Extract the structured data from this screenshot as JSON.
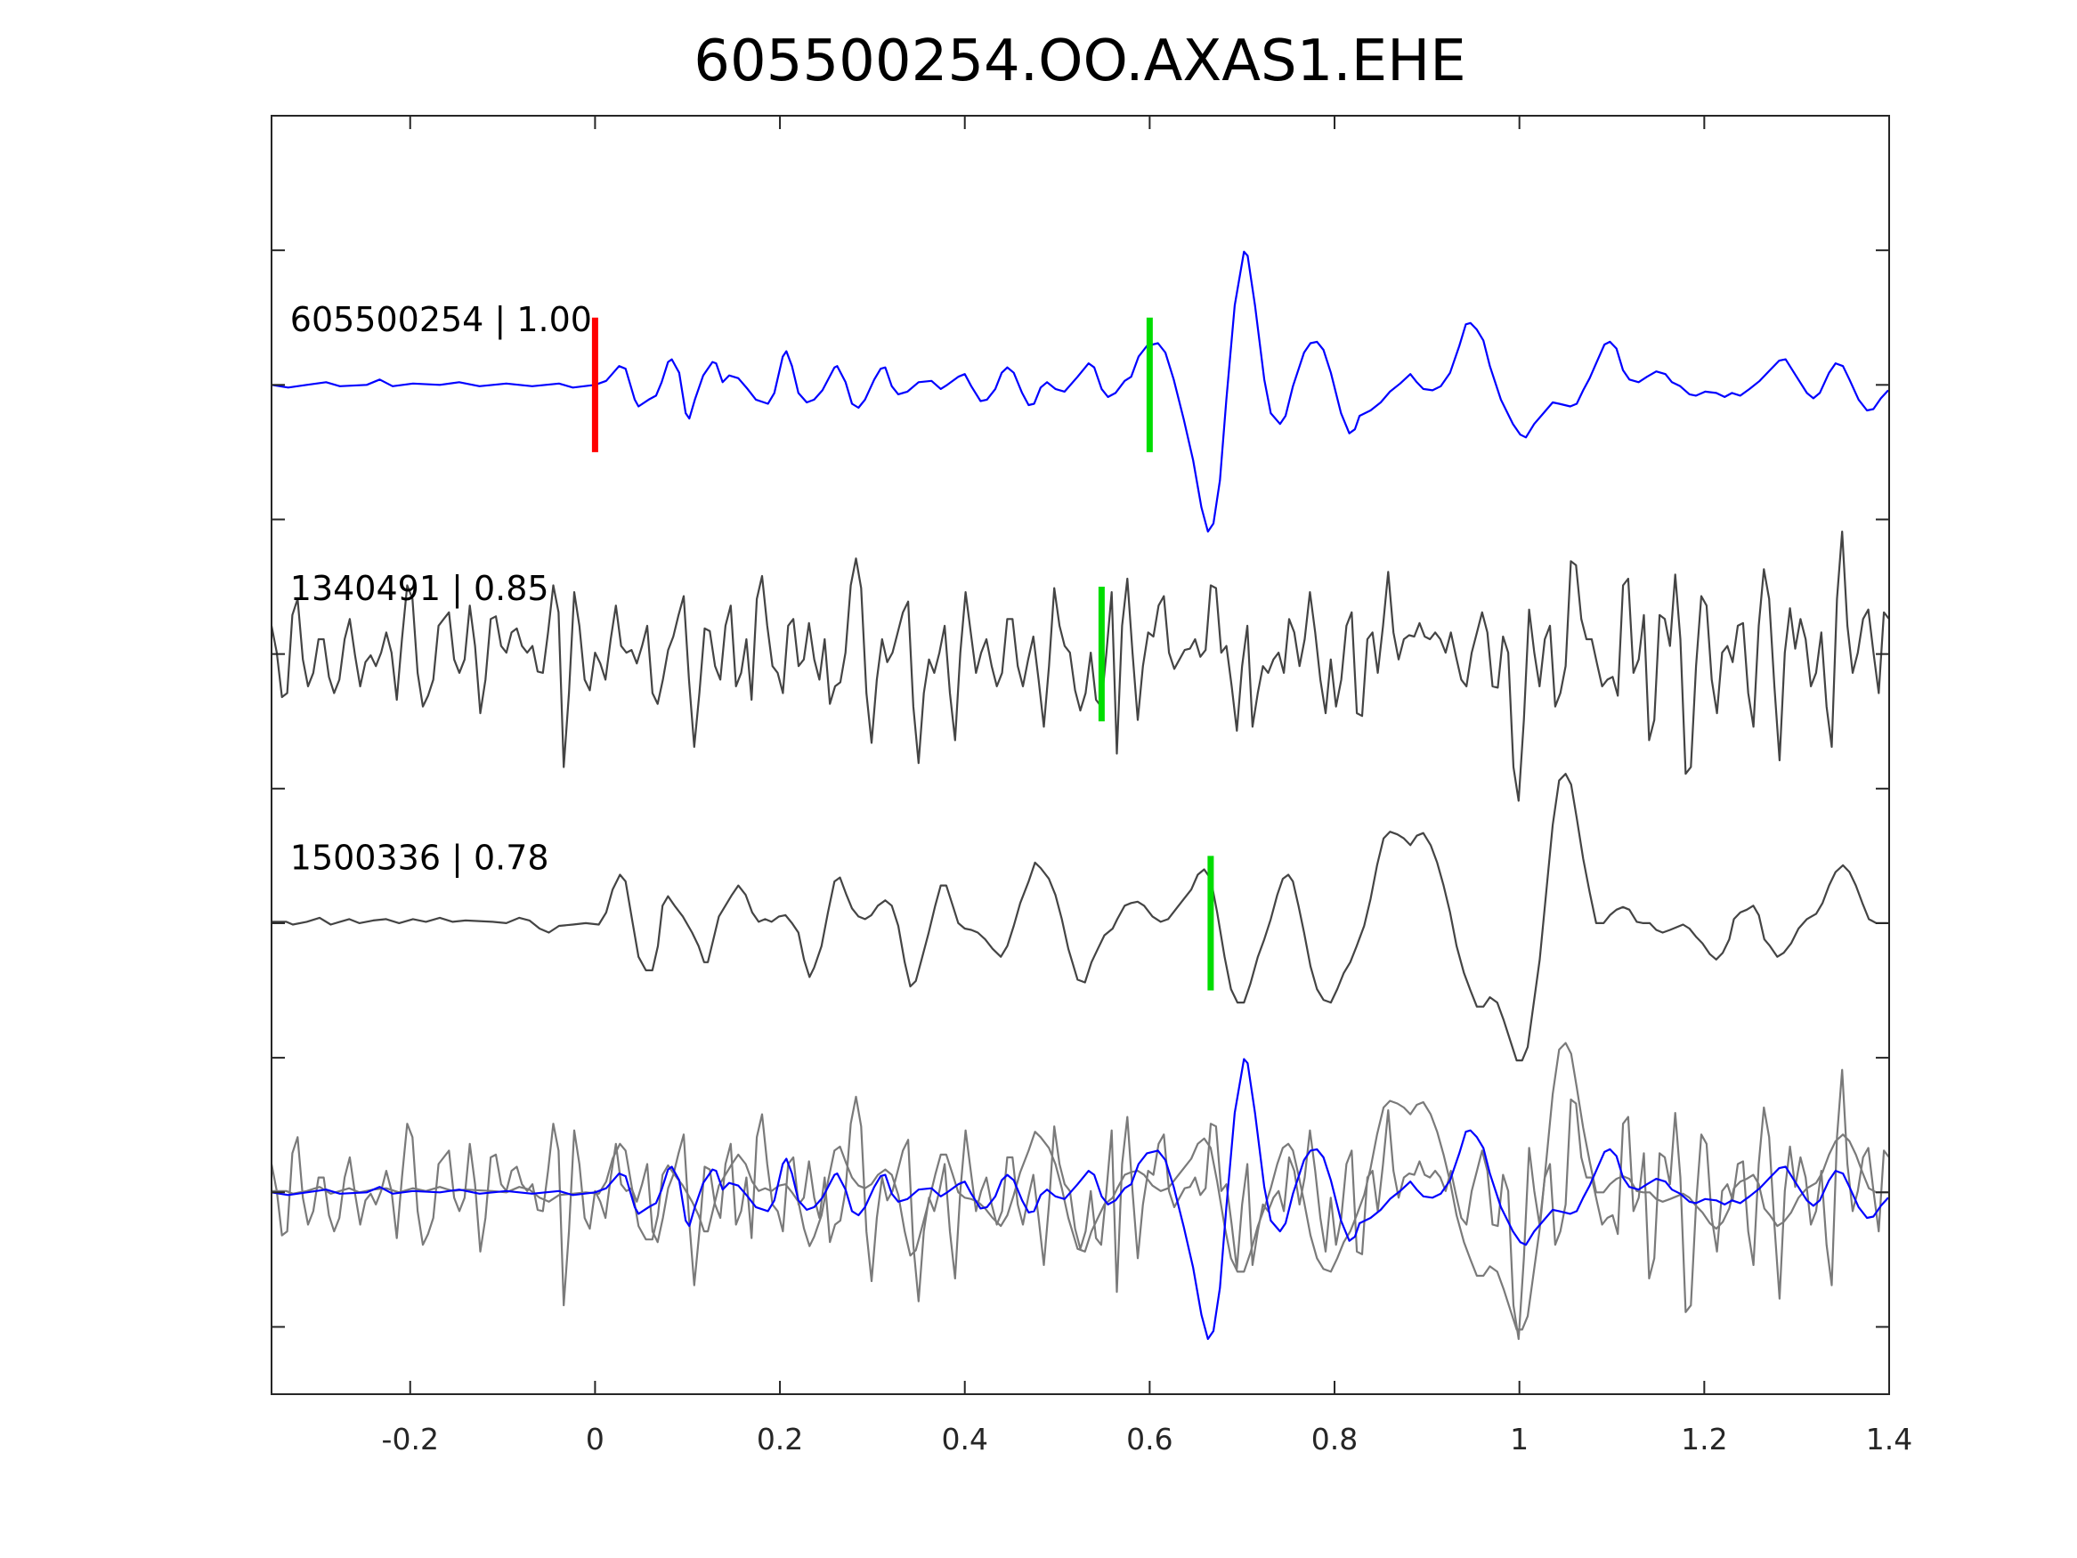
{
  "chart_data": {
    "type": "line",
    "title": "605500254.OO.AXAS1.EHE",
    "xlabel": "",
    "ylabel": "",
    "xlim": [
      -0.35,
      1.4
    ],
    "ylim": [
      -0.5,
      9
    ],
    "x_ticks": [
      -0.2,
      0,
      0.2,
      0.4,
      0.6,
      0.8,
      1,
      1.2,
      1.4
    ],
    "x_tick_labels": [
      "-0.2",
      "0",
      "0.2",
      "0.4",
      "0.6",
      "0.8",
      "1",
      "1.2",
      "1.4"
    ],
    "y_ticks": [
      0,
      1,
      2,
      3,
      4,
      5,
      6,
      7,
      8
    ],
    "grid": false,
    "amplitude_scale": 100,
    "overlay_offset": 1,
    "overlay_gray_color": "#7a7a7a",
    "reference_pick": {
      "time": 0,
      "color": "#ff0000"
    },
    "traces": [
      {
        "label": "605500254 | 1.00",
        "color": "#0000ff",
        "offset": 7,
        "pick_time": 0.6,
        "pick_color": "#00dd00",
        "t": [
          -0.35,
          -0.332,
          -0.312,
          -0.291,
          -0.276,
          -0.247,
          -0.233,
          -0.219,
          -0.197,
          -0.168,
          -0.147,
          -0.125,
          -0.096,
          -0.068,
          -0.039,
          -0.024,
          0,
          0.012,
          0.026,
          0.033,
          0.043,
          0.047,
          0.058,
          0.066,
          0.072,
          0.079,
          0.083,
          0.091,
          0.098,
          0.102,
          0.108,
          0.117,
          0.127,
          0.131,
          0.138,
          0.145,
          0.155,
          0.165,
          0.174,
          0.187,
          0.194,
          0.203,
          0.207,
          0.213,
          0.22,
          0.229,
          0.237,
          0.246,
          0.259,
          0.262,
          0.271,
          0.278,
          0.285,
          0.292,
          0.302,
          0.309,
          0.314,
          0.321,
          0.328,
          0.338,
          0.35,
          0.364,
          0.374,
          0.381,
          0.393,
          0.4,
          0.407,
          0.417,
          0.424,
          0.433,
          0.44,
          0.446,
          0.453,
          0.462,
          0.469,
          0.475,
          0.482,
          0.489,
          0.498,
          0.508,
          0.522,
          0.534,
          0.54,
          0.548,
          0.555,
          0.563,
          0.573,
          0.58,
          0.588,
          0.597,
          0.609,
          0.617,
          0.626,
          0.637,
          0.647,
          0.656,
          0.663,
          0.669,
          0.676,
          0.683,
          0.692,
          0.702,
          0.706,
          0.714,
          0.724,
          0.731,
          0.741,
          0.747,
          0.755,
          0.767,
          0.774,
          0.781,
          0.788,
          0.796,
          0.807,
          0.816,
          0.822,
          0.827,
          0.839,
          0.85,
          0.86,
          0.871,
          0.882,
          0.889,
          0.896,
          0.906,
          0.915,
          0.925,
          0.935,
          0.942,
          0.947,
          0.954,
          0.961,
          0.968,
          0.98,
          0.993,
          1.001,
          1.007,
          1.016,
          1.026,
          1.036,
          1.043,
          1.055,
          1.062,
          1.069,
          1.076,
          1.083,
          1.092,
          1.098,
          1.105,
          1.112,
          1.119,
          1.129,
          1.138,
          1.148,
          1.158,
          1.165,
          1.174,
          1.184,
          1.191,
          1.201,
          1.213,
          1.222,
          1.23,
          1.239,
          1.249,
          1.26,
          1.271,
          1.281,
          1.288,
          1.299,
          1.311,
          1.318,
          1.325,
          1.335,
          1.342,
          1.35,
          1.357,
          1.367,
          1.376,
          1.383,
          1.391,
          1.399
        ],
        "amp": [
          0,
          -2,
          0,
          2,
          -1,
          0,
          4,
          -1,
          1,
          0,
          2,
          -1,
          1,
          -1,
          1,
          -2,
          0,
          3,
          14,
          12,
          -11,
          -16,
          -11,
          -8,
          2,
          17,
          19,
          9,
          -21,
          -25,
          -11,
          7,
          17,
          16,
          2,
          7,
          5,
          -3,
          -11,
          -14,
          -6,
          21,
          25,
          14,
          -6,
          -13,
          -11,
          -4,
          13,
          14,
          2,
          -14,
          -17,
          -11,
          4,
          12,
          13,
          -1,
          -7,
          -5,
          2,
          3,
          -3,
          0,
          6,
          8,
          -1,
          -12,
          -11,
          -3,
          9,
          13,
          9,
          -6,
          -15,
          -14,
          -2,
          2,
          -3,
          -5,
          6,
          16,
          13,
          -3,
          -9,
          -6,
          3,
          6,
          21,
          29,
          31,
          24,
          4,
          -26,
          -56,
          -91,
          -109,
          -103,
          -71,
          -11,
          59,
          99,
          96,
          59,
          4,
          -21,
          -29,
          -23,
          -1,
          24,
          31,
          32,
          26,
          9,
          -21,
          -36,
          -33,
          -23,
          -19,
          -13,
          -5,
          1,
          8,
          2,
          -3,
          -4,
          -1,
          9,
          29,
          45,
          46,
          41,
          33,
          14,
          -11,
          -29,
          -37,
          -39,
          -29,
          -21,
          -13,
          -14,
          -16,
          -14,
          -4,
          5,
          16,
          30,
          32,
          27,
          11,
          4,
          2,
          6,
          10,
          8,
          2,
          -1,
          -7,
          -8,
          -5,
          -6,
          -9,
          -6,
          -8,
          -3,
          3,
          11,
          18,
          19,
          7,
          -6,
          -10,
          -6,
          9,
          16,
          14,
          4,
          -11,
          -19,
          -18,
          -10,
          -4
        ]
      },
      {
        "label": "1340491 | 0.85",
        "color": "#444444",
        "offset": 5,
        "pick_time": 0.548,
        "pick_color": "#00dd00",
        "t_range": [
          -0.35,
          1.4
        ],
        "amp": [
          21,
          1,
          -32,
          -29,
          29,
          41,
          -4,
          -24,
          -14,
          11,
          11,
          -17,
          -29,
          -19,
          11,
          26,
          -1,
          -24,
          -6,
          -1,
          -9,
          1,
          16,
          1,
          -34,
          11,
          51,
          41,
          -14,
          -39,
          -31,
          -19,
          21,
          26,
          31,
          -4,
          -14,
          -4,
          36,
          6,
          -44,
          -19,
          26,
          28,
          6,
          1,
          16,
          19,
          6,
          1,
          6,
          -13,
          -14,
          16,
          51,
          31,
          -84,
          -29,
          46,
          21,
          -19,
          -27,
          1,
          -7,
          -19,
          11,
          36,
          6,
          1,
          3,
          -7,
          6,
          21,
          -29,
          -37,
          -19,
          3,
          13,
          29,
          43,
          -19,
          -69,
          -29,
          19,
          17,
          -9,
          -19,
          21,
          36,
          -24,
          -14,
          11,
          -34,
          41,
          58,
          21,
          -9,
          -14,
          -29,
          21,
          26,
          -9,
          -4,
          23,
          -4,
          -19,
          11,
          -37,
          -24,
          -21,
          1,
          51,
          71,
          49,
          -29,
          -66,
          -19,
          11,
          -6,
          1,
          16,
          31,
          39,
          -39,
          -81,
          -29,
          -4,
          -14,
          1,
          21,
          -29,
          -64,
          1,
          46,
          16,
          -14,
          1,
          11,
          -9,
          -24,
          -14,
          26,
          26,
          -9,
          -24,
          -4,
          13,
          -19,
          -54,
          -9,
          49,
          21,
          6,
          1,
          -27,
          -42,
          -29,
          1,
          -34,
          -39,
          1,
          46,
          -74,
          21,
          56,
          1,
          -49,
          -9,
          16,
          13,
          36,
          43,
          1,
          -11,
          -4,
          3,
          4,
          11,
          -2,
          3,
          51,
          49,
          1,
          6,
          -24,
          -57,
          -9,
          21,
          -54,
          -29,
          -9,
          -14,
          -4,
          1,
          -14,
          26,
          16,
          -9,
          11,
          46,
          16,
          -19,
          -44,
          -4,
          -39,
          -19,
          21,
          31,
          -44,
          -46,
          11,
          16,
          -14,
          21,
          61,
          16,
          -4,
          11,
          14,
          13,
          23,
          13,
          11,
          16,
          11,
          1,
          16,
          -2,
          -19,
          -24,
          1,
          16,
          31,
          16,
          -24,
          -25,
          13,
          1,
          -84,
          -109,
          -49,
          33,
          1,
          -24,
          11,
          21,
          -39,
          -29,
          -9,
          69,
          66,
          26,
          11,
          11,
          -7,
          -24,
          -19,
          -17,
          -31,
          51,
          56,
          -14,
          -4,
          29,
          -64,
          -49,
          29,
          26,
          6,
          59,
          11,
          -89,
          -84,
          -9,
          43,
          36,
          -19,
          -44,
          1,
          6,
          -6,
          21,
          23,
          -29,
          -54,
          21,
          63,
          41,
          -24,
          -79,
          1,
          34,
          4,
          26,
          11,
          -24,
          -14,
          16,
          -39,
          -69,
          41,
          91,
          21,
          -14,
          1,
          26,
          33,
          1,
          -29,
          31,
          26
        ]
      },
      {
        "label": "1500336 | 0.78",
        "color": "#444444",
        "offset": 3,
        "pick_time": 0.666,
        "pick_color": "#00dd00",
        "t": [
          -0.35,
          -0.334,
          -0.327,
          -0.312,
          -0.298,
          -0.286,
          -0.276,
          -0.266,
          -0.255,
          -0.24,
          -0.226,
          -0.212,
          -0.197,
          -0.183,
          -0.168,
          -0.154,
          -0.14,
          -0.111,
          -0.096,
          -0.082,
          -0.071,
          -0.06,
          -0.05,
          -0.039,
          -0.024,
          -0.01,
          0.004,
          0.012,
          0.019,
          0.027,
          0.033,
          0.04,
          0.047,
          0.055,
          0.062,
          0.068,
          0.073,
          0.079,
          0.086,
          0.095,
          0.105,
          0.112,
          0.118,
          0.122,
          0.128,
          0.134,
          0.141,
          0.148,
          0.155,
          0.163,
          0.17,
          0.177,
          0.184,
          0.191,
          0.199,
          0.206,
          0.213,
          0.22,
          0.226,
          0.232,
          0.237,
          0.245,
          0.252,
          0.259,
          0.265,
          0.272,
          0.278,
          0.285,
          0.292,
          0.299,
          0.306,
          0.314,
          0.321,
          0.328,
          0.335,
          0.341,
          0.347,
          0.354,
          0.361,
          0.368,
          0.374,
          0.38,
          0.387,
          0.393,
          0.4,
          0.407,
          0.414,
          0.422,
          0.43,
          0.439,
          0.446,
          0.453,
          0.46,
          0.469,
          0.476,
          0.482,
          0.491,
          0.498,
          0.505,
          0.512,
          0.522,
          0.53,
          0.537,
          0.544,
          0.551,
          0.56,
          0.565,
          0.573,
          0.58,
          0.587,
          0.594,
          0.603,
          0.612,
          0.62,
          0.629,
          0.637,
          0.645,
          0.652,
          0.659,
          0.666,
          0.673,
          0.681,
          0.688,
          0.695,
          0.702,
          0.709,
          0.717,
          0.724,
          0.731,
          0.738,
          0.744,
          0.75,
          0.755,
          0.761,
          0.767,
          0.774,
          0.781,
          0.788,
          0.796,
          0.803,
          0.81,
          0.817,
          0.824,
          0.832,
          0.839,
          0.846,
          0.853,
          0.86,
          0.868,
          0.875,
          0.882,
          0.889,
          0.896,
          0.904,
          0.911,
          0.918,
          0.925,
          0.932,
          0.94,
          0.947,
          0.954,
          0.961,
          0.968,
          0.976,
          0.983,
          0.99,
          0.997,
          1.003,
          1.009,
          1.014,
          1.022,
          1.029,
          1.036,
          1.043,
          1.05,
          1.056,
          1.062,
          1.069,
          1.076,
          1.083,
          1.091,
          1.098,
          1.105,
          1.112,
          1.119,
          1.127,
          1.134,
          1.141,
          1.148,
          1.155,
          1.163,
          1.17,
          1.177,
          1.184,
          1.191,
          1.198,
          1.206,
          1.213,
          1.22,
          1.227,
          1.232,
          1.239,
          1.246,
          1.253,
          1.259,
          1.265,
          1.271,
          1.279,
          1.286,
          1.294,
          1.302,
          1.311,
          1.321,
          1.328,
          1.335,
          1.342,
          1.35,
          1.357,
          1.364,
          1.371,
          1.378,
          1.386,
          1.399
        ],
        "amp": [
          1,
          1,
          -1,
          1,
          4,
          -1,
          1,
          3,
          0,
          2,
          3,
          0,
          3,
          1,
          4,
          1,
          2,
          1,
          0,
          4,
          2,
          -4,
          -7,
          -2,
          -1,
          0,
          -1,
          8,
          25,
          36,
          31,
          3,
          -25,
          -35,
          -35,
          -17,
          13,
          20,
          13,
          5,
          -7,
          -17,
          -29,
          -29,
          -12,
          5,
          13,
          21,
          28,
          21,
          8,
          1,
          3,
          1,
          5,
          6,
          0,
          -7,
          -27,
          -40,
          -33,
          -17,
          8,
          31,
          34,
          21,
          11,
          5,
          3,
          6,
          13,
          17,
          13,
          -2,
          -29,
          -47,
          -43,
          -25,
          -7,
          13,
          28,
          28,
          13,
          0,
          -4,
          -5,
          -7,
          -12,
          -19,
          -25,
          -17,
          -2,
          15,
          31,
          45,
          41,
          33,
          21,
          3,
          -19,
          -42,
          -44,
          -29,
          -19,
          -9,
          -4,
          3,
          13,
          15,
          16,
          13,
          5,
          1,
          3,
          11,
          18,
          25,
          36,
          40,
          33,
          8,
          -25,
          -49,
          -59,
          -59,
          -45,
          -25,
          -12,
          3,
          21,
          33,
          36,
          31,
          13,
          -7,
          -32,
          -49,
          -57,
          -59,
          -49,
          -37,
          -29,
          -17,
          -2,
          18,
          43,
          63,
          68,
          66,
          63,
          58,
          65,
          67,
          58,
          45,
          28,
          8,
          -17,
          -37,
          -50,
          -62,
          -62,
          -55,
          -59,
          -72,
          -87,
          -102,
          -102,
          -92,
          -67,
          -27,
          23,
          73,
          106,
          111,
          103,
          78,
          48,
          23,
          0,
          0,
          6,
          10,
          12,
          10,
          1,
          0,
          0,
          -5,
          -7,
          -5,
          -3,
          -1,
          -4,
          -10,
          -15,
          -23,
          -27,
          -22,
          -12,
          3,
          8,
          10,
          13,
          6,
          -12,
          -17,
          -25,
          -22,
          -15,
          -4,
          3,
          7,
          15,
          28,
          38,
          43,
          38,
          28,
          15,
          3,
          0,
          0
        ]
      }
    ]
  }
}
